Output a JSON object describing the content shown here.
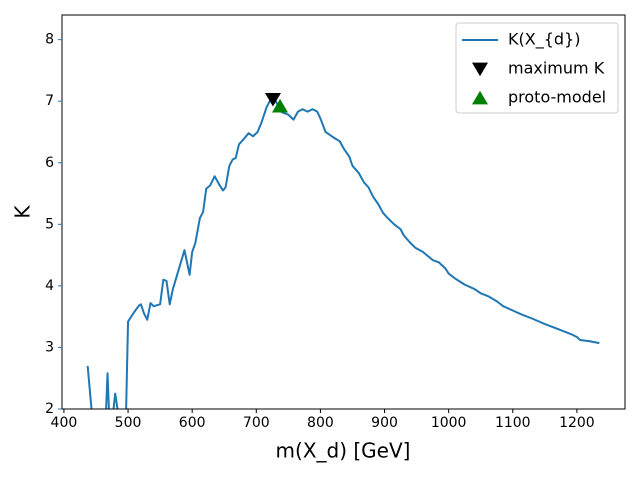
{
  "chart_data": {
    "type": "line",
    "xlabel": "m(X_d) [GeV]",
    "ylabel": "K",
    "ylabel_color": "#1f77b4",
    "xlim": [
      397,
      1275
    ],
    "ylim": [
      2,
      8.4
    ],
    "xticks": [
      400,
      500,
      600,
      700,
      800,
      900,
      1000,
      1100,
      1200
    ],
    "yticks": [
      2,
      3,
      4,
      5,
      6,
      7,
      8
    ],
    "legend": "upper right",
    "grid": false,
    "series": [
      {
        "name": "K(X_{d})",
        "color": "#1f77b4",
        "marker": "none",
        "x": [
          437,
          443,
          450,
          465,
          468,
          472,
          480,
          485,
          492,
          497,
          500,
          510,
          517,
          520,
          525,
          530,
          535,
          540,
          550,
          555,
          560,
          565,
          570,
          580,
          588,
          596,
          600,
          605,
          612,
          617,
          622,
          628,
          635,
          642,
          648,
          652,
          658,
          663,
          668,
          673,
          680,
          688,
          695,
          702,
          708,
          716,
          722,
          728,
          735,
          740,
          750,
          758,
          765,
          772,
          780,
          788,
          795,
          800,
          808,
          815,
          822,
          830,
          837,
          845,
          850,
          860,
          868,
          875,
          882,
          890,
          898,
          905,
          915,
          925,
          930,
          940,
          948,
          960,
          975,
          985,
          995,
          1000,
          1010,
          1025,
          1040,
          1050,
          1062,
          1075,
          1085,
          1100,
          1115,
          1130,
          1150,
          1170,
          1190,
          1200,
          1205,
          1220,
          1235
        ],
        "values": [
          2.7,
          2.0,
          1.5,
          1.8,
          2.58,
          1.5,
          2.25,
          1.9,
          1.7,
          2.0,
          3.42,
          3.58,
          3.68,
          3.7,
          3.55,
          3.45,
          3.72,
          3.67,
          3.7,
          4.1,
          4.08,
          3.7,
          3.95,
          4.3,
          4.58,
          4.18,
          4.55,
          4.7,
          5.1,
          5.2,
          5.58,
          5.63,
          5.78,
          5.65,
          5.55,
          5.6,
          5.95,
          6.05,
          6.08,
          6.3,
          6.38,
          6.48,
          6.43,
          6.5,
          6.65,
          6.9,
          7.02,
          7.05,
          6.9,
          6.82,
          6.78,
          6.7,
          6.83,
          6.87,
          6.83,
          6.87,
          6.83,
          6.72,
          6.5,
          6.45,
          6.4,
          6.35,
          6.22,
          6.1,
          5.95,
          5.83,
          5.68,
          5.6,
          5.45,
          5.33,
          5.18,
          5.1,
          5.0,
          4.92,
          4.82,
          4.7,
          4.62,
          4.55,
          4.42,
          4.38,
          4.28,
          4.2,
          4.12,
          4.02,
          3.95,
          3.88,
          3.83,
          3.75,
          3.67,
          3.6,
          3.53,
          3.47,
          3.38,
          3.3,
          3.22,
          3.17,
          3.12,
          3.1,
          3.07
        ]
      },
      {
        "name": "maximum K",
        "color": "#000000",
        "marker": "v",
        "x": [
          726
        ],
        "values": [
          7.03
        ]
      },
      {
        "name": "proto-model",
        "color": "#008000",
        "marker": "^",
        "x": [
          737
        ],
        "values": [
          6.92
        ]
      }
    ]
  }
}
